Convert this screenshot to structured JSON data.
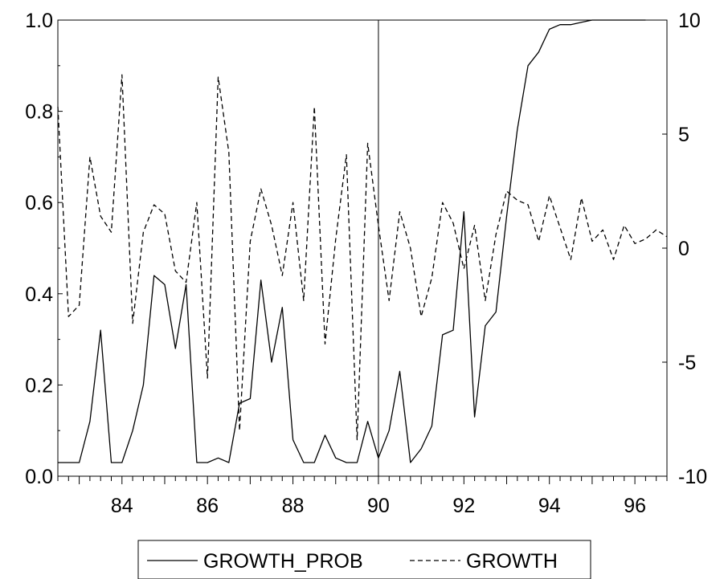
{
  "chart_data": {
    "type": "line",
    "x_unit": "year (2-digit, quarterly)",
    "xlim": [
      82.5,
      96.75
    ],
    "x_ticks": [
      "84",
      "86",
      "88",
      "90",
      "92",
      "94",
      "96"
    ],
    "y_left_ticks": [
      "0.0",
      "0.2",
      "0.4",
      "0.6",
      "0.8",
      "1.0"
    ],
    "y_right_ticks": [
      "-10",
      "-5",
      "0",
      "5",
      "10"
    ],
    "ylim_left": [
      0,
      1
    ],
    "ylim_right": [
      -10,
      10
    ],
    "vertical_marker_x": 90.0,
    "legend_position": "bottom-center",
    "series": [
      {
        "name": "GROWTH_PROB",
        "axis": "left",
        "style": "solid",
        "x": [
          82.5,
          82.75,
          83.0,
          83.25,
          83.5,
          83.75,
          84.0,
          84.25,
          84.5,
          84.75,
          85.0,
          85.25,
          85.5,
          85.75,
          86.0,
          86.25,
          86.5,
          86.75,
          87.0,
          87.25,
          87.5,
          87.75,
          88.0,
          88.25,
          88.5,
          88.75,
          89.0,
          89.25,
          89.5,
          89.75,
          90.0,
          90.25,
          90.5,
          90.75,
          91.0,
          91.25,
          91.5,
          91.75,
          92.0,
          92.25,
          92.5,
          92.75,
          93.0,
          93.25,
          93.5,
          93.75,
          94.0,
          94.25,
          94.5,
          94.75,
          95.0,
          95.25,
          95.5,
          95.75,
          96.0,
          96.25
        ],
        "values": [
          0.03,
          0.03,
          0.03,
          0.12,
          0.32,
          0.03,
          0.03,
          0.1,
          0.2,
          0.44,
          0.42,
          0.28,
          0.42,
          0.03,
          0.03,
          0.04,
          0.03,
          0.16,
          0.17,
          0.43,
          0.25,
          0.37,
          0.08,
          0.03,
          0.03,
          0.09,
          0.04,
          0.03,
          0.03,
          0.12,
          0.04,
          0.1,
          0.23,
          0.03,
          0.06,
          0.11,
          0.31,
          0.32,
          0.58,
          0.13,
          0.33,
          0.36,
          0.57,
          0.76,
          0.9,
          0.93,
          0.98,
          0.99,
          0.99,
          0.995,
          1.0,
          1.0,
          1.0,
          1.0,
          1.0,
          1.0
        ]
      },
      {
        "name": "GROWTH",
        "axis": "right",
        "style": "dashed",
        "x": [
          82.5,
          82.75,
          83.0,
          83.25,
          83.5,
          83.75,
          84.0,
          84.25,
          84.5,
          84.75,
          85.0,
          85.25,
          85.5,
          85.75,
          86.0,
          86.25,
          86.5,
          86.75,
          87.0,
          87.25,
          87.5,
          87.75,
          88.0,
          88.25,
          88.5,
          88.75,
          89.0,
          89.25,
          89.5,
          89.75,
          90.0,
          90.25,
          90.5,
          90.75,
          91.0,
          91.25,
          91.5,
          91.75,
          92.0,
          92.25,
          92.5,
          92.75,
          93.0,
          93.25,
          93.5,
          93.75,
          94.0,
          94.25,
          94.5,
          94.75,
          95.0,
          95.25,
          95.5,
          95.75,
          96.0,
          96.25,
          96.5,
          96.75
        ],
        "values": [
          6.2,
          -3.0,
          -2.5,
          4.0,
          1.4,
          0.7,
          7.6,
          -3.3,
          0.7,
          1.9,
          1.5,
          -1.0,
          -1.5,
          2.0,
          -5.7,
          7.5,
          4.2,
          -8.0,
          0.3,
          2.6,
          1.0,
          -1.2,
          2.0,
          -2.3,
          6.2,
          -4.2,
          0.4,
          4.1,
          -8.4,
          4.6,
          1.0,
          -2.3,
          1.6,
          0.0,
          -3.0,
          -1.3,
          2.0,
          1.1,
          -0.9,
          1.0,
          -2.3,
          0.6,
          2.5,
          2.1,
          1.9,
          0.3,
          2.3,
          0.9,
          -0.5,
          2.2,
          0.3,
          0.8,
          -0.5,
          1.0,
          0.2,
          0.4,
          0.8,
          0.5
        ]
      }
    ]
  }
}
